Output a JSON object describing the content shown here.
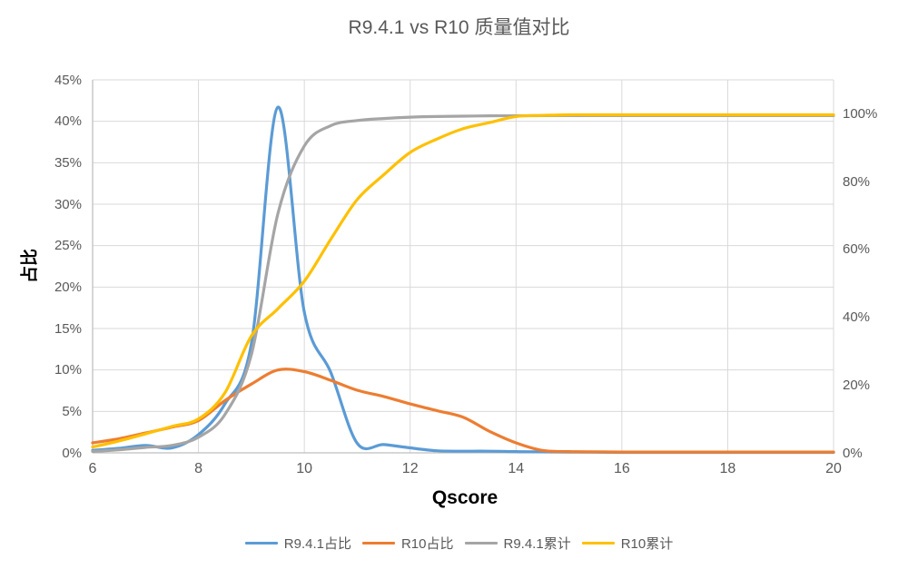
{
  "title": "R9.4.1 vs R10 质量值对比",
  "axes": {
    "x": {
      "title": "Qscore",
      "min": 6,
      "max": 20,
      "tick_values": [
        6,
        8,
        10,
        12,
        14,
        16,
        18,
        20
      ],
      "tick_labels": [
        "6",
        "8",
        "10",
        "12",
        "14",
        "16",
        "18",
        "20"
      ],
      "gridline_values": [
        8,
        10,
        12,
        14,
        16,
        18,
        20
      ]
    },
    "y_left": {
      "title": "占比",
      "min": 0,
      "max": 45,
      "tick_values": [
        0,
        5,
        10,
        15,
        20,
        25,
        30,
        35,
        40,
        45
      ],
      "tick_labels": [
        "0%",
        "5%",
        "10%",
        "15%",
        "20%",
        "25%",
        "30%",
        "35%",
        "40%",
        "45%"
      ]
    },
    "y_right": {
      "min": 0,
      "max": 110,
      "tick_values": [
        0,
        20,
        40,
        60,
        80,
        100
      ],
      "tick_labels": [
        "0%",
        "20%",
        "40%",
        "60%",
        "80%",
        "100%"
      ]
    }
  },
  "colors": {
    "grid": "#D9D9D9",
    "axis_line": "#BFBFBF",
    "tick_text": "#595959",
    "title_text": "#595959"
  },
  "chart_data": {
    "type": "line",
    "title": "R9.4.1 vs R10 质量值对比",
    "xlabel": "Qscore",
    "ylabel_left": "占比",
    "xlim": [
      6,
      20
    ],
    "ylim_left": [
      0,
      45
    ],
    "ylim_right": [
      0,
      110
    ],
    "grid": true,
    "legend_position": "bottom",
    "x": [
      6,
      6.5,
      7,
      7.5,
      8,
      8.5,
      9,
      9.5,
      10,
      10.5,
      11,
      11.5,
      12,
      12.5,
      13,
      13.5,
      14,
      14.5,
      15,
      15.5,
      16,
      16.5,
      17,
      17.5,
      18,
      18.5,
      19,
      19.5,
      20
    ],
    "series": [
      {
        "name": "R9.4.1占比",
        "axis": "left",
        "color": "#5B9BD5",
        "values": [
          0.3,
          0.55,
          0.9,
          0.6,
          2.2,
          5.9,
          13.2,
          41.7,
          17,
          9.7,
          1.15,
          1.0,
          0.6,
          0.25,
          0.2,
          0.2,
          0.15,
          0.12,
          0.1,
          0.08,
          0.06,
          0.05,
          0.05,
          0.05,
          0.05,
          0.05,
          0.05,
          0.05,
          0.05
        ]
      },
      {
        "name": "R10占比",
        "axis": "left",
        "color": "#ED7D31",
        "values": [
          1.2,
          1.7,
          2.4,
          3.1,
          3.9,
          6.3,
          8.3,
          10.0,
          9.8,
          8.75,
          7.55,
          6.8,
          5.9,
          5.1,
          4.3,
          2.6,
          1.2,
          0.3,
          0.15,
          0.12,
          0.1,
          0.1,
          0.1,
          0.1,
          0.1,
          0.1,
          0.1,
          0.1,
          0.1
        ]
      },
      {
        "name": "R9.4.1累计",
        "axis": "right",
        "color": "#A5A5A5",
        "values": [
          0.4,
          0.9,
          1.6,
          2.2,
          4.6,
          11.3,
          29,
          70.5,
          90.5,
          96.5,
          98,
          98.6,
          99,
          99.2,
          99.3,
          99.4,
          99.4,
          99.45,
          99.45,
          99.45,
          99.45,
          99.45,
          99.45,
          99.45,
          99.45,
          99.45,
          99.45,
          99.45,
          99.45
        ]
      },
      {
        "name": "R10累计",
        "axis": "right",
        "color": "#FFC000",
        "values": [
          1.7,
          3.5,
          5.6,
          7.8,
          10,
          17.7,
          34.5,
          42.5,
          50.6,
          63,
          74.7,
          82,
          88.6,
          92.5,
          95.6,
          97.4,
          99.2,
          99.5,
          99.7,
          99.7,
          99.7,
          99.7,
          99.7,
          99.7,
          99.7,
          99.7,
          99.7,
          99.7,
          99.7
        ]
      }
    ]
  }
}
